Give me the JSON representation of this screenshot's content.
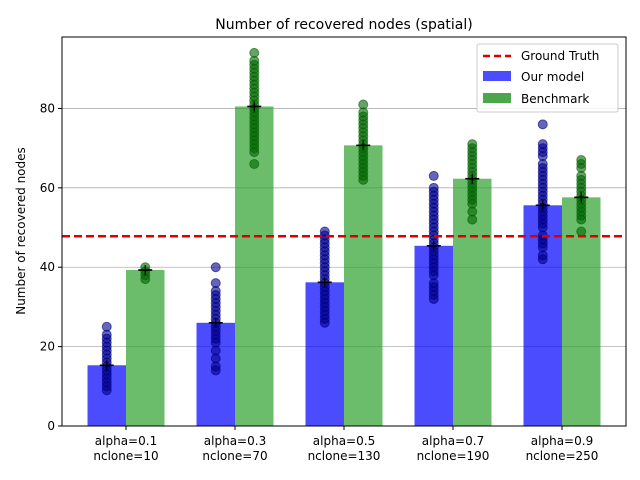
{
  "chart_data": {
    "type": "bar",
    "title": "Number of recovered nodes (spatial)",
    "ylabel": "Number of recovered nodes",
    "xlabel": "",
    "ylim": [
      0,
      98
    ],
    "yticks": [
      0,
      20,
      40,
      60,
      80
    ],
    "grid": "y",
    "legend_position": "top-right",
    "categories": [
      [
        "alpha=0.1",
        "nclone=10"
      ],
      [
        "alpha=0.3",
        "nclone=70"
      ],
      [
        "alpha=0.5",
        "nclone=130"
      ],
      [
        "alpha=0.7",
        "nclone=190"
      ],
      [
        "alpha=0.9",
        "nclone=250"
      ]
    ],
    "reference_line": {
      "name": "Ground Truth",
      "value": 47.8,
      "color": "#dd0000",
      "style": "dashed"
    },
    "series": [
      {
        "name": "Our model",
        "color": "#0000ff",
        "point_color": "#00008b",
        "values": [
          15.3,
          26.0,
          36.2,
          45.4,
          55.6
        ],
        "points": [
          [
            9,
            10,
            11,
            12,
            13,
            14,
            15,
            16,
            17,
            18,
            19,
            20,
            21,
            22,
            23,
            25
          ],
          [
            14,
            15,
            17,
            19,
            21,
            22,
            23,
            24,
            25,
            26,
            27,
            28,
            29,
            30,
            31,
            32,
            33,
            34,
            36,
            40
          ],
          [
            26,
            27,
            28,
            29,
            30,
            31,
            32,
            33,
            34,
            35,
            36,
            37,
            38,
            39,
            40,
            41,
            42,
            43,
            44,
            45,
            46,
            47,
            48,
            49
          ],
          [
            32,
            33,
            34,
            35,
            36,
            38,
            39,
            40,
            41,
            42,
            43,
            44,
            45,
            46,
            47,
            48,
            49,
            50,
            51,
            52,
            53,
            54,
            55,
            56,
            57,
            58,
            59,
            60,
            63
          ],
          [
            42,
            43,
            45,
            46,
            47,
            48,
            50,
            51,
            52,
            53,
            54,
            55,
            56,
            57,
            58,
            59,
            60,
            61,
            62,
            63,
            64,
            65,
            66,
            68,
            69,
            70,
            71,
            76
          ]
        ]
      },
      {
        "name": "Benchmark",
        "color": "#2ca02c",
        "point_color": "#006400",
        "values": [
          39.3,
          80.5,
          70.7,
          62.3,
          57.6
        ],
        "points": [
          [
            37,
            38,
            39,
            40
          ],
          [
            66,
            69,
            70,
            71,
            72,
            73,
            74,
            75,
            76,
            77,
            78,
            79,
            80,
            81,
            82,
            83,
            84,
            85,
            86,
            87,
            88,
            89,
            90,
            91,
            92,
            94
          ],
          [
            62,
            63,
            64,
            65,
            66,
            67,
            68,
            69,
            70,
            71,
            72,
            73,
            74,
            75,
            76,
            77,
            78,
            79,
            81
          ],
          [
            52,
            54,
            56,
            57,
            58,
            59,
            60,
            61,
            62,
            63,
            64,
            65,
            66,
            67,
            68,
            69,
            70,
            71
          ],
          [
            49,
            52,
            53,
            54,
            55,
            56,
            57,
            58,
            59,
            60,
            61,
            62,
            63,
            65,
            66,
            67
          ]
        ]
      }
    ]
  }
}
